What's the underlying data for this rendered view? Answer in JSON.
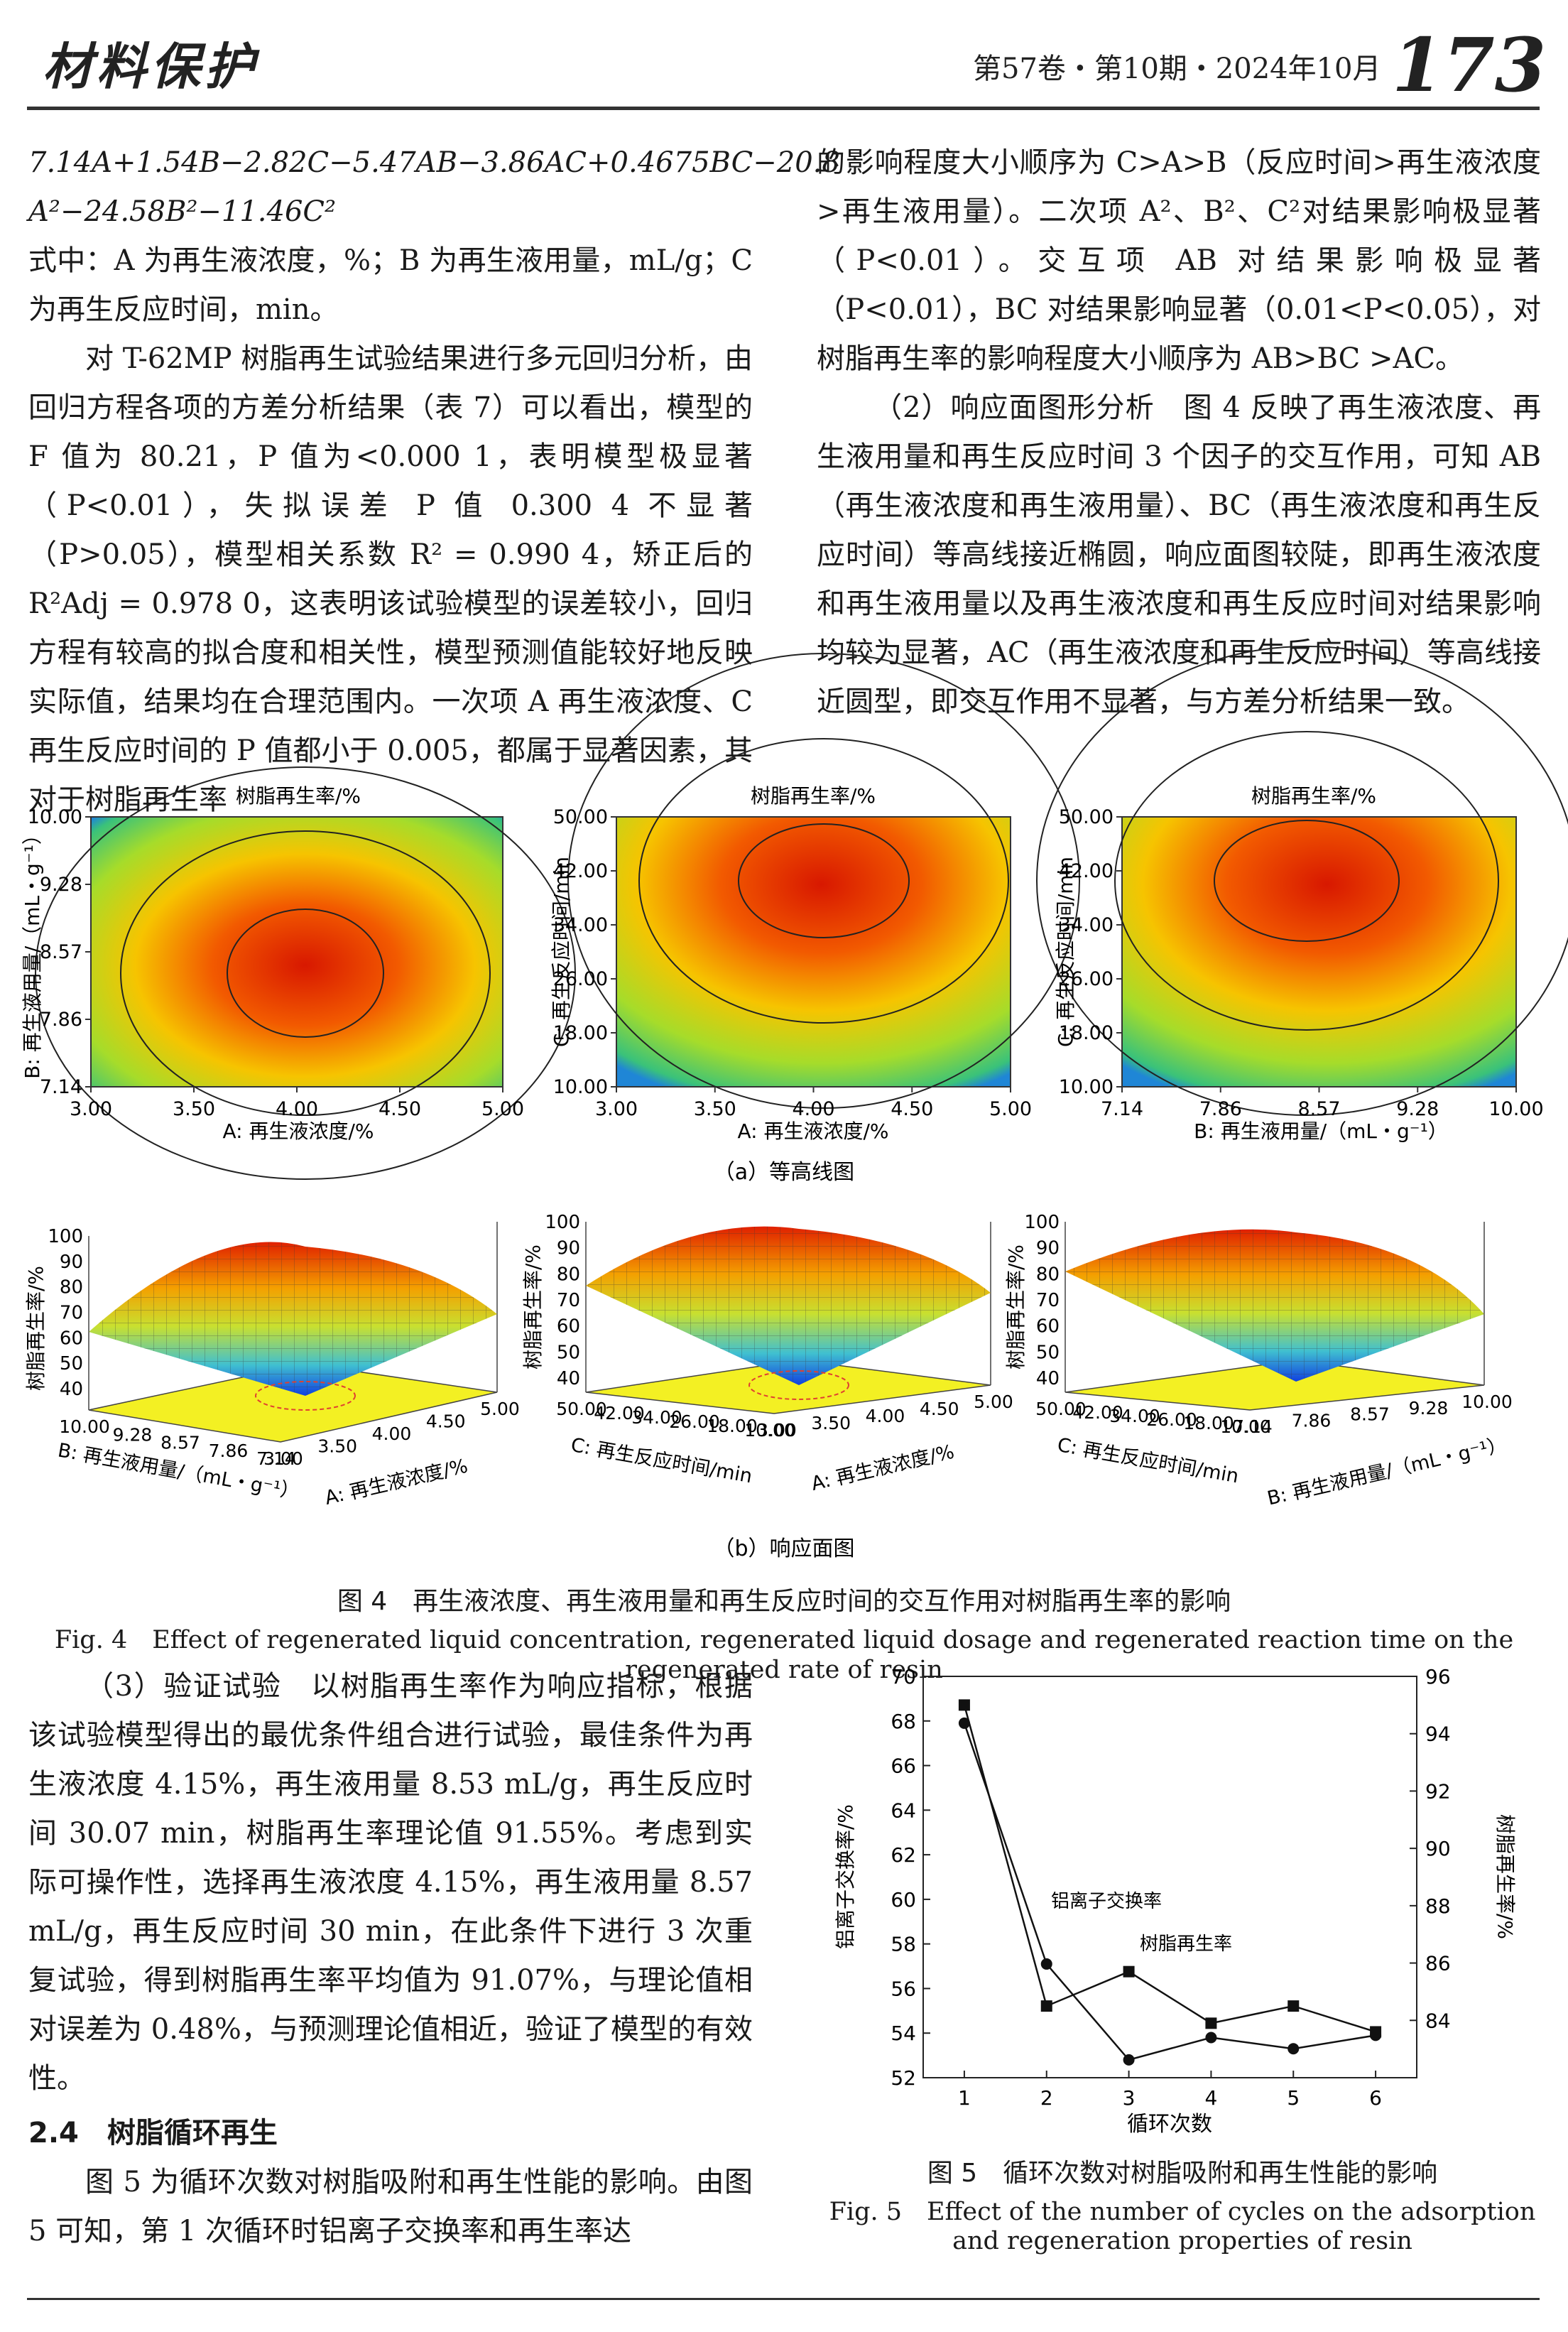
{
  "header": {
    "journal": "材料保护",
    "issue": "第57卷・第10期・2024年10月",
    "page": "173"
  },
  "left1": {
    "eq1": "7.14A+1.54B−2.82C−5.47AB−3.86AC+0.4675BC−20.8",
    "eq2": "A²−24.58B²−11.46C²",
    "p1": "式中：A 为再生液浓度，%；B 为再生液用量，mL/g；C 为再生反应时间，min。",
    "p2": "对 T-62MP 树脂再生试验结果进行多元回归分析，由回归方程各项的方差分析结果（表 7）可以看出，模型的 F 值为 80.21，P 值为<0.000 1，表明模型极显著（P<0.01），失拟误差 P 值 0.300 4 不显著（P>0.05），模型相关系数 R² = 0.990 4，矫正后的 R²Adj = 0.978 0，这表明该试验模型的误差较小，回归方程有较高的拟合度和相关性，模型预测值能较好地反映实际值，结果均在合理范围内。一次项 A 再生液浓度、C 再生反应时间的 P 值都小于 0.005，都属于显著因素，其对于树脂再生率"
  },
  "right1": {
    "p1": "的影响程度大小顺序为 C>A>B（反应时间>再生液浓度>再生液用量）。二次项 A²、B²、C²对结果影响极显著（P<0.01）。交互项 AB 对结果影响极显著（P<0.01），BC 对结果影响显著（0.01<P<0.05），对树脂再生率的影响程度大小顺序为 AB>BC >AC。",
    "p2": "（2）响应面图形分析　图 4 反映了再生液浓度、再生液用量和再生反应时间 3 个因子的交互作用，可知 AB（再生液浓度和再生液用量）、BC（再生液浓度和再生反应时间）等高线接近椭圆，响应面图较陡，即再生液浓度和再生液用量以及再生液浓度和再生反应时间对结果影响均较为显著，AC（再生液浓度和再生反应时间）等高线接近圆型，即交互作用不显著，与方差分析结果一致。"
  },
  "fig4": {
    "panel_title": "树脂再生率/%",
    "contours": [
      {
        "xlabel": "A: 再生液浓度/%",
        "ylabel": "B: 再生液用量/（mL・g⁻¹）",
        "xticks": [
          "3.00",
          "3.50",
          "4.00",
          "4.50",
          "5.00"
        ],
        "yticks": [
          "7.14",
          "7.86",
          "8.57",
          "9.28",
          "10.00"
        ]
      },
      {
        "xlabel": "A: 再生液浓度/%",
        "ylabel": "C: 再生反应时间/min",
        "xticks": [
          "3.00",
          "3.50",
          "4.00",
          "4.50",
          "5.00"
        ],
        "yticks": [
          "10.00",
          "18.00",
          "26.00",
          "34.00",
          "42.00",
          "50.00"
        ]
      },
      {
        "xlabel": "B: 再生液用量/（mL・g⁻¹）",
        "ylabel": "C: 再生反应时间/min",
        "xticks": [
          "7.14",
          "7.86",
          "8.57",
          "9.28",
          "10.00"
        ],
        "yticks": [
          "10.00",
          "18.00",
          "26.00",
          "34.00",
          "42.00",
          "50.00"
        ]
      }
    ],
    "sub_a": "（a）等高线图",
    "surfaces": [
      {
        "zlabel": "树脂再生率/%",
        "zticks": [
          "40",
          "50",
          "60",
          "70",
          "80",
          "90",
          "100"
        ],
        "xlabel": "A: 再生液浓度/%",
        "xticks": [
          "3.00",
          "3.50",
          "4.00",
          "4.50",
          "5.00"
        ],
        "ylabel": "B: 再生液用量/（mL・g⁻¹）",
        "yticks": [
          "10.00",
          "9.28",
          "8.57",
          "7.86",
          "7.14"
        ]
      },
      {
        "zlabel": "树脂再生率/%",
        "zticks": [
          "40",
          "50",
          "60",
          "70",
          "80",
          "90",
          "100"
        ],
        "xlabel": "A: 再生液浓度/%",
        "xticks": [
          "3.00",
          "3.50",
          "4.00",
          "4.50",
          "5.00"
        ],
        "ylabel": "C: 再生反应时间/min",
        "yticks": [
          "50.00",
          "42.00",
          "34.00",
          "26.00",
          "18.00",
          "10.00"
        ]
      },
      {
        "zlabel": "树脂再生率/%",
        "zticks": [
          "40",
          "50",
          "60",
          "70",
          "80",
          "90",
          "100"
        ],
        "xlabel": "B: 再生液用量/（mL・g⁻¹）",
        "xticks": [
          "7.14",
          "7.86",
          "8.57",
          "9.28",
          "10.00"
        ],
        "ylabel": "C: 再生反应时间/min",
        "yticks": [
          "50.00",
          "42.00",
          "34.00",
          "26.00",
          "18.00",
          "10.00"
        ]
      }
    ],
    "sub_b": "（b）响应面图",
    "caption_cn": "图 4　再生液浓度、再生液用量和再生反应时间的交互作用对树脂再生率的影响",
    "caption_en": "Fig. 4　Effect of regenerated liquid concentration, regenerated liquid dosage and regenerated reaction time on the regenerated rate of resin"
  },
  "left2": {
    "p1": "（3）验证试验　以树脂再生率作为响应指标，根据该试验模型得出的最优条件组合进行试验，最佳条件为再生液浓度 4.15%，再生液用量 8.53 mL/g，再生反应时间 30.07 min，树脂再生率理论值 91.55%。考虑到实际可操作性，选择再生液浓度 4.15%，再生液用量 8.57 mL/g，再生反应时间 30 min，在此条件下进行 3 次重复试验，得到树脂再生率平均值为 91.07%，与理论值相对误差为 0.48%，与预测理论值相近，验证了模型的有效性。",
    "sec": "2.4　树脂循环再生",
    "p2": "图 5 为循环次数对树脂吸附和再生性能的影响。由图 5 可知，第 1 次循环时铝离子交换率和再生率达"
  },
  "chart_data": {
    "type": "line",
    "xlabel": "循环次数",
    "ylabel_left": "铝离子交换率/%",
    "ylabel_right": "树脂再生率/%",
    "x": [
      1,
      2,
      3,
      4,
      5,
      6
    ],
    "ylim_left": [
      52,
      70
    ],
    "ylim_right": [
      82,
      96
    ],
    "yticks_left": [
      52,
      54,
      56,
      58,
      60,
      62,
      64,
      66,
      68,
      70
    ],
    "yticks_right": [
      84,
      86,
      88,
      90,
      92,
      94,
      96
    ],
    "series": [
      {
        "name": "铝离子交换率",
        "axis": "left",
        "marker": "circle",
        "values": [
          67.9,
          57.1,
          52.8,
          53.8,
          53.3,
          53.9
        ]
      },
      {
        "name": "树脂再生率",
        "axis": "right",
        "marker": "square",
        "values": [
          95.0,
          84.5,
          85.7,
          83.9,
          84.5,
          83.6
        ]
      }
    ],
    "caption_cn": "图 5　循环次数对树脂吸附和再生性能的影响",
    "caption_en1": "Fig. 5　Effect of the number of cycles on the adsorption",
    "caption_en2": "and regeneration properties of resin"
  }
}
